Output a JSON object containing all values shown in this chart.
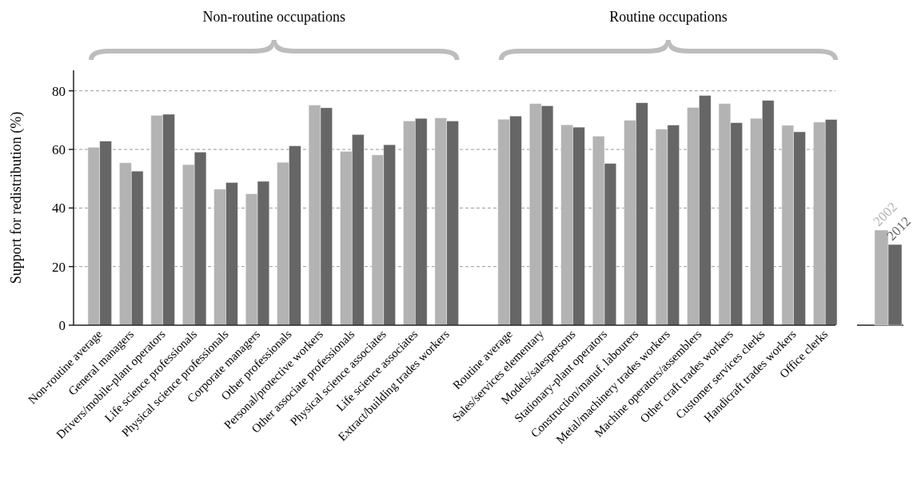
{
  "chart_data": {
    "type": "bar",
    "ylabel": "Support for redistribution (%)",
    "categories": [
      "Non-routine average",
      "General managers",
      "Drivers/mobile-plant operators",
      "Life science professionals",
      "Physical science professionals",
      "Corporate managers",
      "Other professionals",
      "Personal/protective workers",
      "Other associate professionals",
      "Physical science associates",
      "Life science associates",
      "Extract/building trades workers",
      null,
      "Routine average",
      "Sales/services elementary",
      "Models/salespersons",
      "Stationary-plant operators",
      "Construction/manuf. labourers",
      "Metal/machinery trades workers",
      "Machine operators/assemblers",
      "Other craft trades workers",
      "Customer services clerks",
      "Handicraft trades workers",
      "Office clerks"
    ],
    "series": [
      {
        "name": "2002",
        "color": "#b3b3b3",
        "values": [
          60.7,
          55.4,
          71.6,
          54.8,
          46.4,
          44.8,
          55.6,
          75.1,
          59.3,
          58.1,
          69.7,
          70.7,
          null,
          70.3,
          75.6,
          68.4,
          64.5,
          69.9,
          66.9,
          74.3,
          75.6,
          70.6,
          68.2,
          69.3
        ]
      },
      {
        "name": "2012",
        "color": "#666666",
        "values": [
          62.8,
          52.6,
          72.0,
          59.1,
          48.7,
          49.1,
          61.2,
          74.2,
          65.1,
          61.6,
          70.6,
          69.7,
          null,
          71.4,
          74.9,
          67.6,
          55.2,
          75.9,
          68.3,
          78.4,
          69.1,
          76.7,
          66.0,
          70.2
        ]
      }
    ],
    "ylim": [
      0,
      87
    ],
    "yticks": [
      0,
      20,
      40,
      60,
      80
    ],
    "grid": "y",
    "legend": "right",
    "annotations": [
      "Non-routine occupations",
      "Routine occupations"
    ]
  }
}
